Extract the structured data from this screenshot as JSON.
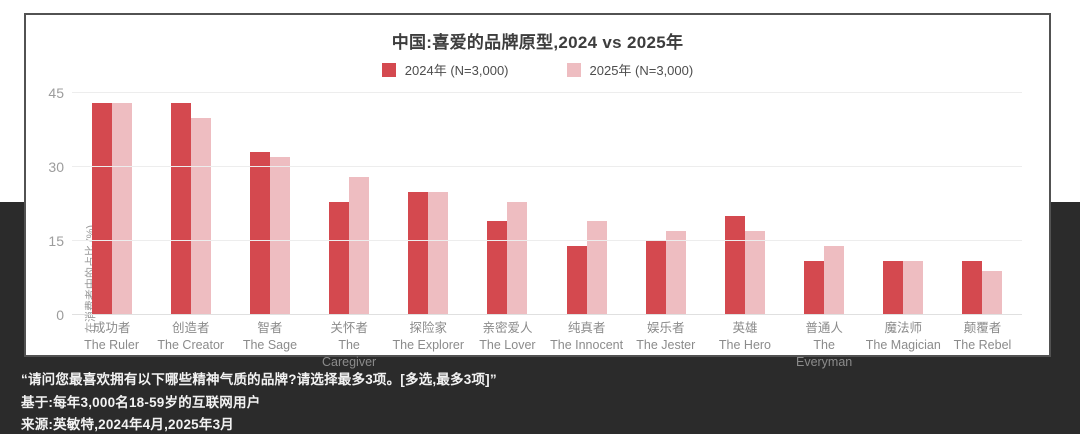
{
  "chart_data": {
    "type": "bar",
    "title": "中国:喜爱的品牌原型,2024 vs 2025年",
    "ylabel": "在消费者中的占比 (%)",
    "ylim": [
      0,
      45
    ],
    "yticks": [
      0,
      15,
      30,
      45
    ],
    "grid": true,
    "legend_position": "top-center",
    "categories": [
      {
        "zh": "成功者",
        "en": "The Ruler"
      },
      {
        "zh": "创造者",
        "en": "The Creator"
      },
      {
        "zh": "智者",
        "en": "The Sage"
      },
      {
        "zh": "关怀者",
        "en": "The Caregiver"
      },
      {
        "zh": "探险家",
        "en": "The Explorer"
      },
      {
        "zh": "亲密爱人",
        "en": "The Lover"
      },
      {
        "zh": "纯真者",
        "en": "The Innocent"
      },
      {
        "zh": "娱乐者",
        "en": "The Jester"
      },
      {
        "zh": "英雄",
        "en": "The Hero"
      },
      {
        "zh": "普通人",
        "en": "The Everyman"
      },
      {
        "zh": "魔法师",
        "en": "The Magician"
      },
      {
        "zh": "颠覆者",
        "en": "The Rebel"
      }
    ],
    "series": [
      {
        "name": "2024年 (N=3,000)",
        "color": "#d4494f",
        "values": [
          43,
          43,
          33,
          23,
          25,
          19,
          14,
          15,
          20,
          11,
          11,
          11
        ]
      },
      {
        "name": "2025年 (N=3,000)",
        "color": "#eebdc1",
        "values": [
          43,
          40,
          32,
          28,
          25,
          23,
          19,
          17,
          17,
          14,
          11,
          9
        ]
      }
    ]
  },
  "legend": [
    {
      "label": "2024年 (N=3,000)",
      "color": "#d4494f"
    },
    {
      "label": "2025年 (N=3,000)",
      "color": "#eebdc1"
    }
  ],
  "footer": {
    "question": "“请问您最喜欢拥有以下哪些精神气质的品牌?请选择最多3项。[多选,最多3项]”",
    "base": "基于:每年3,000名18-59岁的互联网用户",
    "source": "来源:英敏特,2024年4月,2025年3月"
  },
  "colors": {
    "background_dark": "#2b2b2b",
    "background_light": "#ffffff",
    "card_border": "#525252",
    "bar_2024": "#d4494f",
    "bar_2025": "#eebdc1",
    "gridline": "#ededed",
    "title_text": "#3d3d3d",
    "axis_text": "#9c9c9c",
    "footer_text": "#f2f2f2"
  }
}
